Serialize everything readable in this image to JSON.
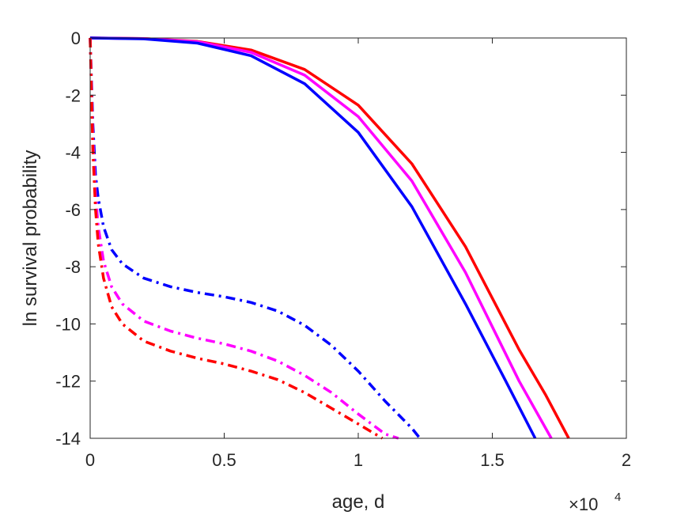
{
  "chart_data": {
    "type": "line",
    "xlabel": "age, d",
    "ylabel": "ln survival probability",
    "x_exponent": {
      "base": "×10",
      "power": "4"
    },
    "xlim": [
      0,
      20000
    ],
    "ylim": [
      -14,
      0
    ],
    "x_ticks": [
      0,
      5000,
      10000,
      15000,
      20000
    ],
    "x_tick_labels": [
      "0",
      "0.5",
      "1",
      "1.5",
      "2"
    ],
    "y_ticks": [
      0,
      -2,
      -4,
      -6,
      -8,
      -10,
      -12,
      -14
    ],
    "y_tick_labels": [
      "0",
      "-2",
      "-4",
      "-6",
      "-8",
      "-10",
      "-12",
      "-14"
    ],
    "grid": false,
    "series": [
      {
        "color": "#ff0000",
        "style": "solid",
        "x": [
          0,
          2000,
          4000,
          6000,
          8000,
          10000,
          12000,
          14000,
          16000,
          17000,
          17850
        ],
        "y": [
          0,
          -0.02,
          -0.12,
          -0.42,
          -1.1,
          -2.35,
          -4.4,
          -7.3,
          -10.9,
          -12.5,
          -14
        ]
      },
      {
        "color": "#ff00ff",
        "style": "solid",
        "x": [
          0,
          2000,
          4000,
          6000,
          8000,
          10000,
          12000,
          14000,
          16000,
          17200
        ],
        "y": [
          0,
          -0.02,
          -0.13,
          -0.5,
          -1.3,
          -2.75,
          -5.0,
          -8.2,
          -12.0,
          -14
        ]
      },
      {
        "color": "#0000ff",
        "style": "solid",
        "x": [
          0,
          2000,
          4000,
          6000,
          8000,
          10000,
          12000,
          14000,
          15500,
          16600
        ],
        "y": [
          0,
          -0.03,
          -0.18,
          -0.62,
          -1.6,
          -3.3,
          -5.9,
          -9.3,
          -12.0,
          -14
        ]
      },
      {
        "color": "#0000ff",
        "style": "dashdot",
        "x": [
          0,
          50,
          100,
          200,
          300,
          500,
          800,
          1200,
          2000,
          3000,
          4000,
          5000,
          6000,
          7000,
          8000,
          9000,
          10000,
          11000,
          12000,
          12300
        ],
        "y": [
          0,
          -1.5,
          -3.0,
          -4.8,
          -5.6,
          -6.6,
          -7.4,
          -7.9,
          -8.4,
          -8.7,
          -8.9,
          -9.05,
          -9.25,
          -9.55,
          -10.05,
          -10.75,
          -11.65,
          -12.7,
          -13.65,
          -14
        ]
      },
      {
        "color": "#ff00ff",
        "style": "dashdot",
        "x": [
          0,
          50,
          100,
          200,
          300,
          500,
          800,
          1200,
          2000,
          3000,
          4000,
          5000,
          6000,
          7000,
          8000,
          9000,
          10000,
          11000,
          11500
        ],
        "y": [
          0,
          -1.8,
          -3.5,
          -5.5,
          -6.6,
          -7.8,
          -8.7,
          -9.3,
          -9.9,
          -10.25,
          -10.5,
          -10.7,
          -10.95,
          -11.3,
          -11.8,
          -12.4,
          -13.15,
          -13.85,
          -14
        ]
      },
      {
        "color": "#ff0000",
        "style": "dashdot",
        "x": [
          0,
          50,
          100,
          200,
          300,
          500,
          800,
          1200,
          2000,
          3000,
          4000,
          5000,
          6000,
          7000,
          8000,
          9000,
          10000,
          10900
        ],
        "y": [
          0,
          -2.0,
          -3.9,
          -6.0,
          -7.2,
          -8.4,
          -9.4,
          -10.0,
          -10.6,
          -10.95,
          -11.2,
          -11.4,
          -11.65,
          -11.95,
          -12.4,
          -12.95,
          -13.5,
          -14
        ]
      }
    ]
  }
}
